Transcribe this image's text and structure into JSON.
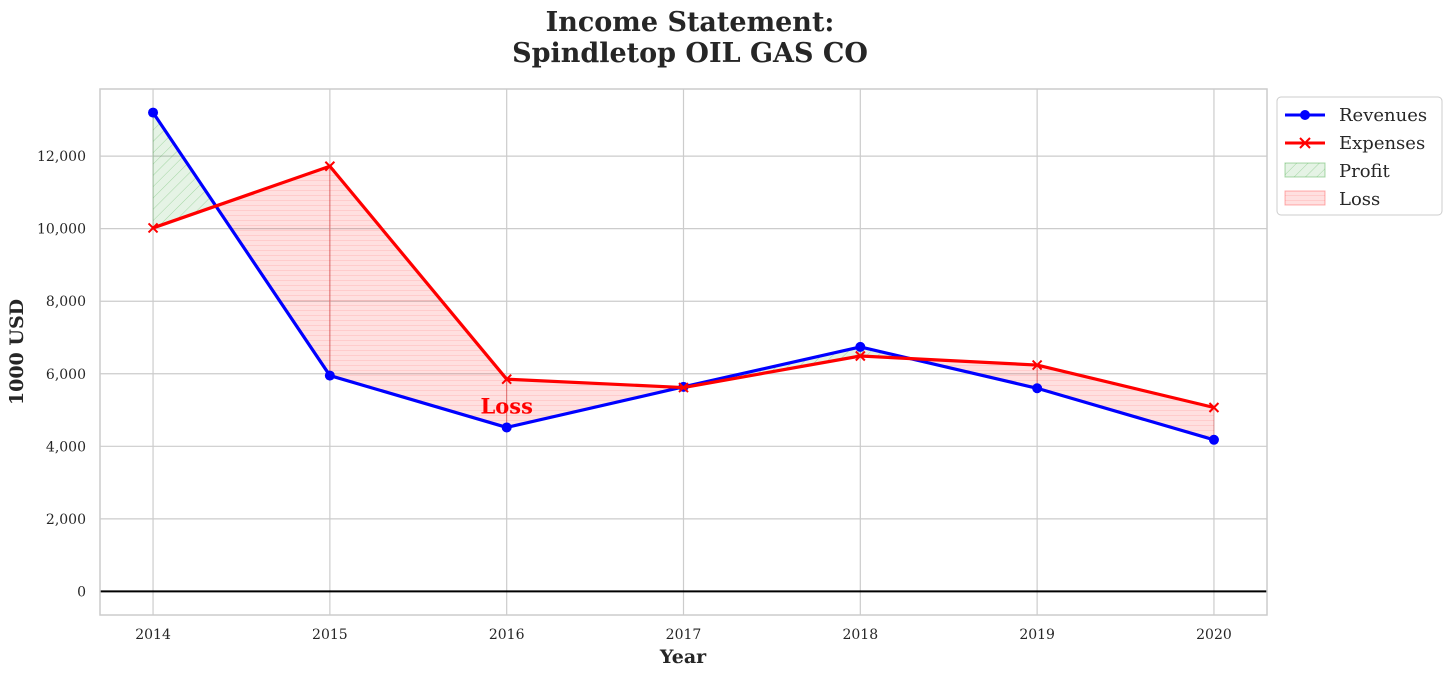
{
  "chart_data": {
    "type": "line",
    "title_line1": "Income Statement:",
    "title_line2": "Spindletop OIL GAS CO",
    "xlabel": "Year",
    "ylabel": "1000 USD",
    "x": [
      2014,
      2015,
      2016,
      2017,
      2018,
      2019,
      2020
    ],
    "xtick_labels": [
      "2014",
      "2015",
      "2016",
      "2017",
      "2018",
      "2019",
      "2020"
    ],
    "ylim": [
      -650,
      13850
    ],
    "yticks": [
      0,
      2000,
      4000,
      6000,
      8000,
      10000,
      12000
    ],
    "ytick_labels": [
      "0",
      "2,000",
      "4,000",
      "6,000",
      "8,000",
      "10,000",
      "12,000"
    ],
    "grid": true,
    "legend_position": "outside-top-right",
    "series": [
      {
        "name": "Revenues",
        "values": [
          13200,
          5950,
          4520,
          5640,
          6740,
          5600,
          4180
        ],
        "color": "#0000ff",
        "marker": "circle"
      },
      {
        "name": "Expenses",
        "values": [
          10020,
          11720,
          5850,
          5620,
          6490,
          6240,
          5070
        ],
        "color": "#ff0000",
        "marker": "x"
      }
    ],
    "fills": [
      {
        "name": "Profit",
        "color": "#2ca02c"
      },
      {
        "name": "Loss",
        "color": "#ff0000"
      }
    ],
    "annotation": {
      "text": "Loss",
      "x": 2016,
      "y": 5100
    }
  }
}
